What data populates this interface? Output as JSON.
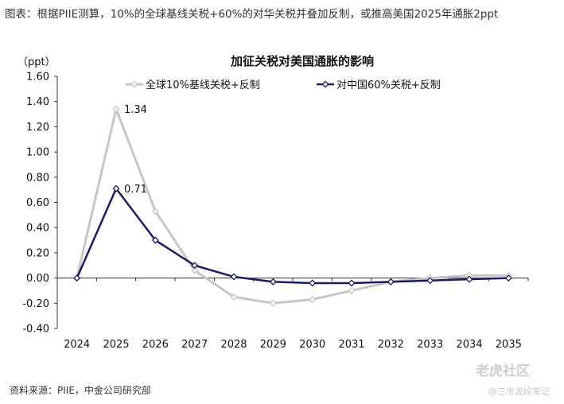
{
  "page": {
    "caption": "图表：根据PIIE测算，10%的全球基线关税+60%的对华关税并叠加反制，或推高美国2025年通胀2ppt",
    "source": "资料来源：PIIE，中金公司研究部",
    "watermark_main": "老虎社区",
    "watermark_sub": "@三市波段笔记"
  },
  "chart_data": {
    "type": "line",
    "title": "加征关税对美国通胀的影响",
    "ylabel": "（ppt）",
    "xlabel": "",
    "ylim": [
      -0.4,
      1.6
    ],
    "yticks": [
      -0.4,
      -0.2,
      0.0,
      0.2,
      0.4,
      0.6,
      0.8,
      1.0,
      1.2,
      1.4,
      1.6
    ],
    "ytick_labels": [
      "-0.40",
      "-0.20",
      "0.00",
      "0.20",
      "0.40",
      "0.60",
      "0.80",
      "1.00",
      "1.20",
      "1.40",
      "1.60"
    ],
    "categories": [
      "2024",
      "2025",
      "2026",
      "2027",
      "2028",
      "2029",
      "2030",
      "2031",
      "2032",
      "2033",
      "2034",
      "2035"
    ],
    "grid": false,
    "legend_position": "top",
    "series": [
      {
        "name": "全球10%基线关税+反制",
        "color": "#c6c6c6",
        "values": [
          0.0,
          1.34,
          0.53,
          0.06,
          -0.15,
          -0.2,
          -0.17,
          -0.1,
          -0.03,
          0.0,
          0.02,
          0.02
        ]
      },
      {
        "name": "对中国60%关税+反制",
        "color": "#1a1a6e",
        "values": [
          0.0,
          0.71,
          0.3,
          0.1,
          0.01,
          -0.03,
          -0.04,
          -0.04,
          -0.03,
          -0.02,
          -0.01,
          0.0
        ]
      }
    ],
    "annotations": [
      {
        "text": "1.34",
        "series": 0,
        "index": 1
      },
      {
        "text": "0.71",
        "series": 1,
        "index": 1
      }
    ]
  }
}
